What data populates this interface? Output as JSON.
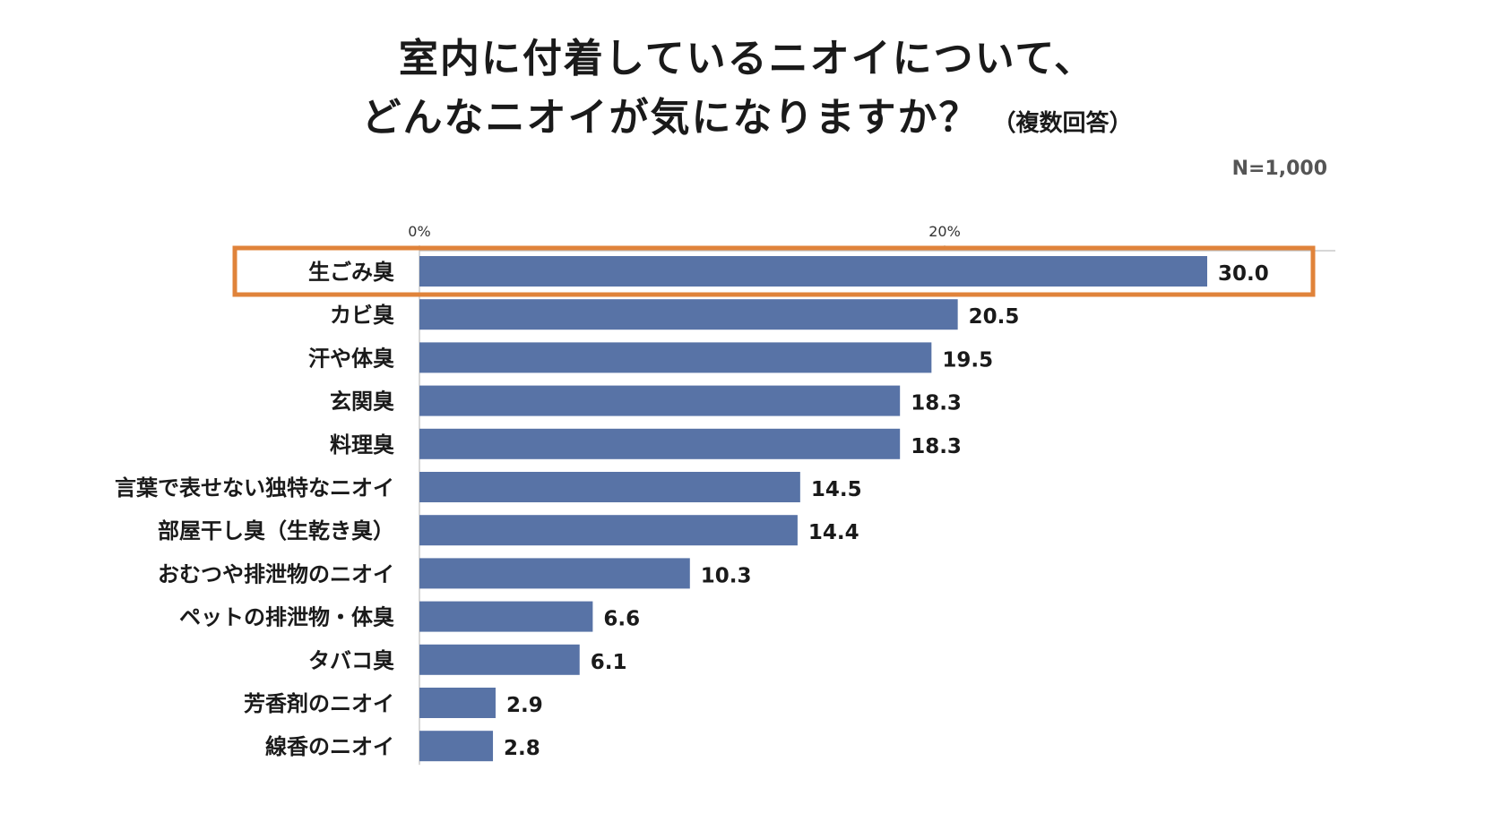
{
  "title_line1": "室内に付着しているニオイについて、",
  "title_line2": "どんなニオイが気になりますか？",
  "title_note": "（複数回答）",
  "sample_size": "N=1,000",
  "chart_data": {
    "type": "bar",
    "orientation": "horizontal",
    "title": "室内に付着しているニオイについて、どんなニオイが気になりますか？（複数回答）",
    "xlabel": "",
    "ylabel": "",
    "xlim": [
      0,
      34
    ],
    "x_ticks": [
      0,
      20
    ],
    "x_tick_labels": [
      "0%",
      "20%"
    ],
    "grid": false,
    "categories": [
      "生ごみ臭",
      "カビ臭",
      "汗や体臭",
      "玄関臭",
      "料理臭",
      "言葉で表せない独特なニオイ",
      "部屋干し臭（生乾き臭）",
      "おむつや排泄物のニオイ",
      "ペットの排泄物・体臭",
      "タバコ臭",
      "芳香剤のニオイ",
      "線香のニオイ"
    ],
    "values": [
      30.0,
      20.5,
      19.5,
      18.3,
      18.3,
      14.5,
      14.4,
      10.3,
      6.6,
      6.1,
      2.9,
      2.8
    ],
    "value_labels": [
      "30.0",
      "20.5",
      "19.5",
      "18.3",
      "18.3",
      "14.5",
      "14.4",
      "10.3",
      "6.6",
      "6.1",
      "2.9",
      "2.8"
    ],
    "highlighted_category": "生ごみ臭",
    "colors": {
      "bar": "#5873a6",
      "highlight_border": "#e0833a",
      "axis": "#bfbfbf"
    }
  }
}
